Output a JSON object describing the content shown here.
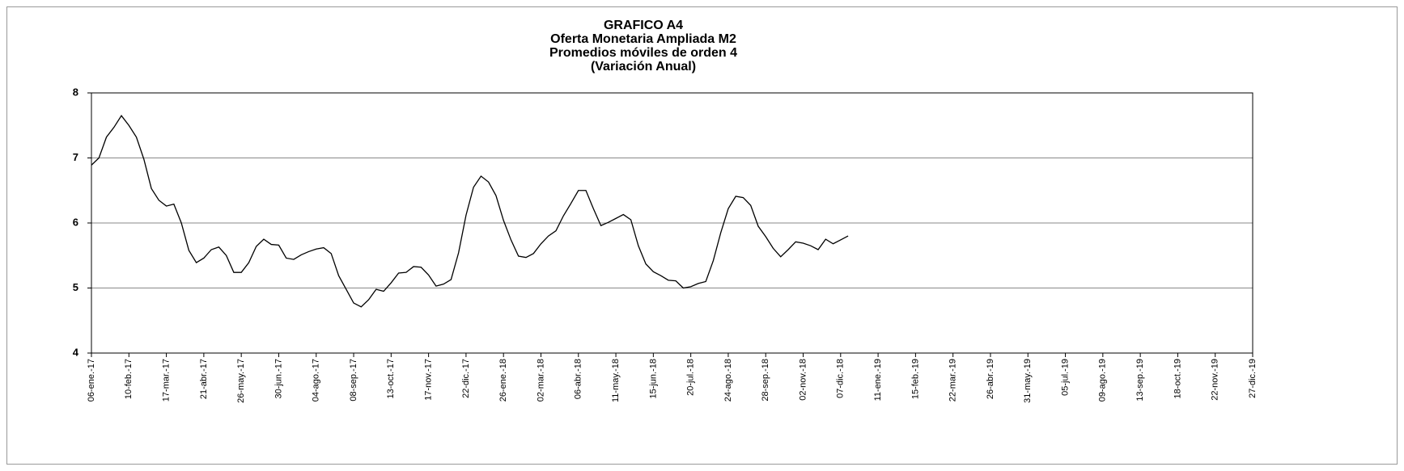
{
  "chart_data": {
    "type": "line",
    "title": [
      "GRAFICO A4",
      "Oferta Monetaria Ampliada M2",
      "Promedios móviles de orden 4",
      "(Variación Anual)"
    ],
    "categories": [
      "06-ene.-17",
      null,
      null,
      null,
      null,
      "10-feb.-17",
      null,
      null,
      null,
      null,
      "17-mar.-17",
      null,
      null,
      null,
      null,
      "21-abr.-17",
      null,
      null,
      null,
      null,
      "26-may.-17",
      null,
      null,
      null,
      null,
      "30-jun.-17",
      null,
      null,
      null,
      null,
      "04-ago.-17",
      null,
      null,
      null,
      null,
      "08-sep.-17",
      null,
      null,
      null,
      null,
      "13-oct.-17",
      null,
      null,
      null,
      null,
      "17-nov.-17",
      null,
      null,
      null,
      null,
      "22-dic.-17",
      null,
      null,
      null,
      null,
      "26-ene.-18",
      null,
      null,
      null,
      null,
      "02-mar.-18",
      null,
      null,
      null,
      null,
      "06-abr.-18",
      null,
      null,
      null,
      null,
      "11-may.-18",
      null,
      null,
      null,
      null,
      "15-jun.-18",
      null,
      null,
      null,
      null,
      "20-jul.-18",
      null,
      null,
      null,
      null,
      "24-ago.-18",
      null,
      null,
      null,
      null,
      "28-sep.-18",
      null,
      null,
      null,
      null,
      "02-nov.-18",
      null,
      null,
      null,
      null,
      "07-dic.-18",
      null,
      null,
      null,
      null,
      "11-ene.-19",
      null,
      null,
      null,
      null,
      "15-feb.-19",
      null,
      null,
      null,
      null,
      "22-mar.-19",
      null,
      null,
      null,
      null,
      "26-abr.-19",
      null,
      null,
      null,
      null,
      "31-may.-19",
      null,
      null,
      null,
      null,
      "05-jul.-19",
      null,
      null,
      null,
      null,
      "09-ago.-19",
      null,
      null,
      null,
      null,
      "13-sep.-19",
      null,
      null,
      null,
      null,
      "18-oct.-19",
      null,
      null,
      null,
      null,
      "22-nov.-19",
      null,
      null,
      null,
      null,
      "27-dic.-19"
    ],
    "values": [
      6.89,
      7.0,
      7.32,
      7.47,
      7.65,
      7.5,
      7.32,
      6.98,
      6.53,
      6.35,
      6.26,
      6.29,
      6.0,
      5.58,
      5.39,
      5.46,
      5.59,
      5.63,
      5.5,
      5.24,
      5.24,
      5.39,
      5.64,
      5.75,
      5.67,
      5.66,
      5.46,
      5.44,
      5.51,
      5.56,
      5.6,
      5.62,
      5.53,
      5.19,
      4.98,
      4.77,
      4.71,
      4.82,
      4.98,
      4.95,
      5.08,
      5.23,
      5.24,
      5.33,
      5.32,
      5.2,
      5.03,
      5.06,
      5.13,
      5.54,
      6.12,
      6.55,
      6.72,
      6.63,
      6.42,
      6.04,
      5.74,
      5.49,
      5.47,
      5.53,
      5.68,
      5.8,
      5.88,
      6.11,
      6.3,
      6.5,
      6.5,
      6.22,
      5.96,
      6.01,
      6.07,
      6.13,
      6.05,
      5.65,
      5.37,
      5.25,
      5.19,
      5.12,
      5.11,
      5.0,
      5.02,
      5.07,
      5.1,
      5.42,
      5.85,
      6.22,
      6.41,
      6.39,
      6.27,
      5.95,
      5.79,
      5.61,
      5.48,
      5.59,
      5.71,
      5.69,
      5.65,
      5.59,
      5.75,
      5.68,
      5.74,
      5.8,
      null,
      null,
      null,
      null,
      null,
      null,
      null,
      null,
      null,
      null,
      null,
      null,
      null,
      null,
      null,
      null,
      null,
      null,
      null,
      null,
      null,
      null,
      null,
      null,
      null,
      null,
      null,
      null,
      null,
      null,
      null,
      null,
      null,
      null,
      null,
      null,
      null,
      null,
      null,
      null,
      null,
      null,
      null,
      null,
      null,
      null,
      null,
      null,
      null,
      null,
      null,
      null,
      null,
      null
    ],
    "color": "#000000",
    "ylim": [
      4,
      8
    ],
    "yticks": [
      4,
      5,
      6,
      7,
      8
    ],
    "grid": true
  }
}
